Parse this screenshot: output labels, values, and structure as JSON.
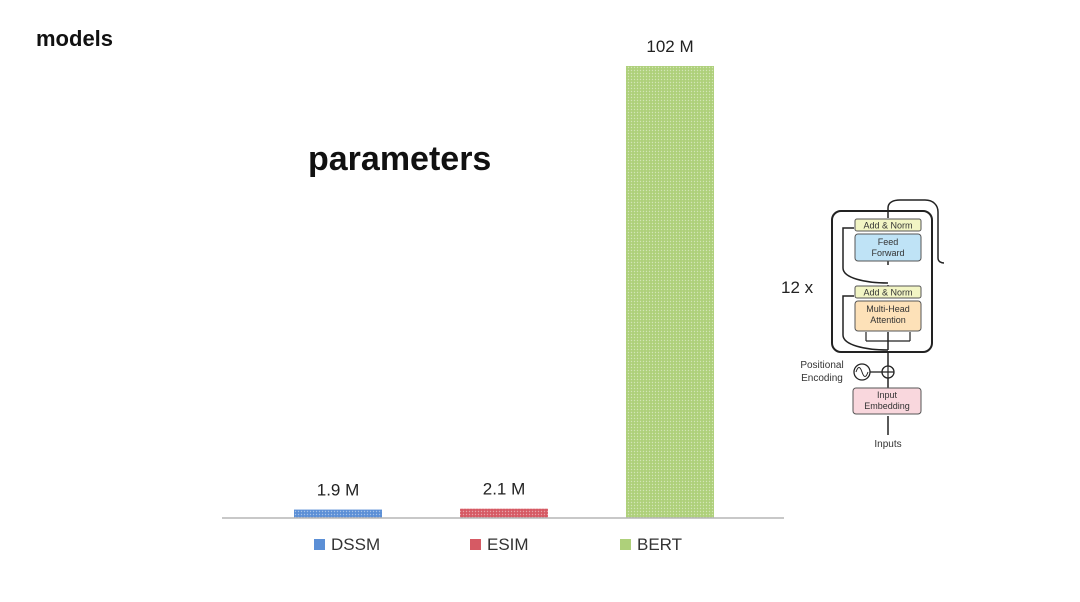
{
  "page": {
    "corner_label": "models"
  },
  "chart_data": {
    "type": "bar",
    "title": "parameters",
    "categories": [
      "DSSM",
      "ESIM",
      "BERT"
    ],
    "values": [
      1.9,
      2.1,
      102
    ],
    "value_labels": [
      "1.9 M",
      "2.1 M",
      "102 M"
    ],
    "unit": "M",
    "ylim": [
      0,
      102
    ],
    "colors": [
      "#5b8fd6",
      "#d65a64",
      "#aed07a"
    ],
    "legend": {
      "placement": "bottom",
      "entries": [
        "DSSM",
        "ESIM",
        "BERT"
      ]
    },
    "grid": false
  },
  "diagram": {
    "repeat_label": "12 x",
    "add_norm_top": "Add & Norm",
    "feed_forward": [
      "Feed",
      "Forward"
    ],
    "add_norm_bottom": "Add & Norm",
    "attention": [
      "Multi-Head",
      "Attention"
    ],
    "positional_encoding": [
      "Positional",
      "Encoding"
    ],
    "input_embedding": [
      "Input",
      "Embedding"
    ],
    "inputs": "Inputs",
    "colors": {
      "add_norm": "#f2f5c4",
      "feed_forward": "#bfe3f6",
      "attention": "#fde1b8",
      "embedding": "#f9d7dd"
    }
  }
}
